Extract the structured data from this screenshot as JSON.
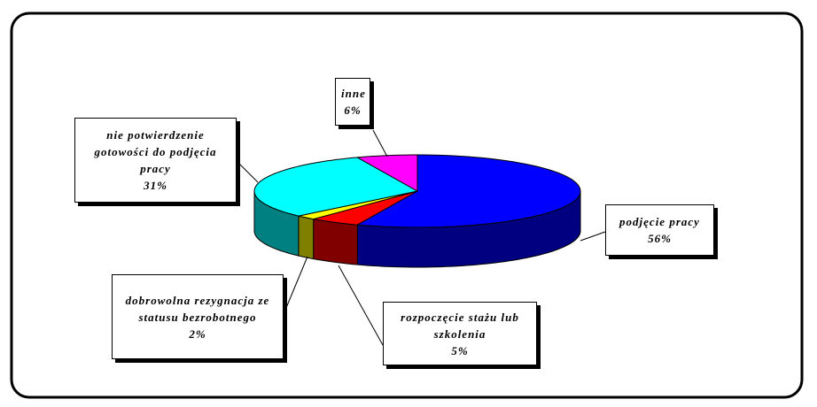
{
  "chart_data": {
    "type": "pie3d",
    "categories": [
      "podjęcie pracy",
      "rozpoczęcie stażu lub szkolenia",
      "dobrowolna rezygnacja ze statusu bezrobotnego",
      "nie potwierdzenie gotowości do podjęcia pracy",
      "inne"
    ],
    "values": [
      56,
      5,
      2,
      31,
      6
    ],
    "value_labels": [
      "56%",
      "5%",
      "2%",
      "31%",
      "6%"
    ],
    "colors": [
      "#0000ff",
      "#ff0000",
      "#ffff00",
      "#00ffff",
      "#ff00ff"
    ]
  }
}
